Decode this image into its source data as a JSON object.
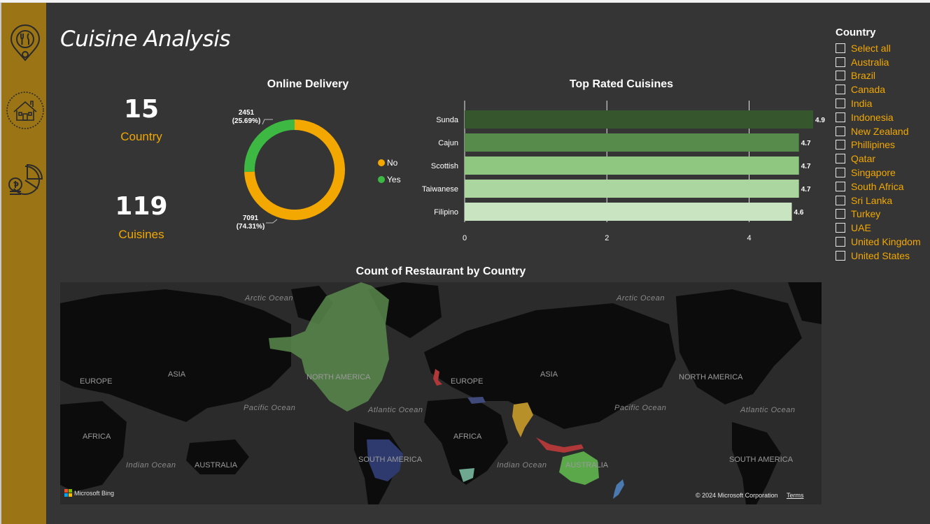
{
  "page": {
    "title": "Cuisine Analysis"
  },
  "sidebar": {
    "icons": [
      {
        "name": "restaurant-location-icon"
      },
      {
        "name": "home-icon"
      },
      {
        "name": "finance-pie-icon"
      }
    ]
  },
  "kpis": [
    {
      "value": "15",
      "label": "Country"
    },
    {
      "value": "119",
      "label": "Cuisines"
    }
  ],
  "online_delivery": {
    "title": "Online Delivery",
    "yes_label": "2451",
    "yes_pct": "(25.69%)",
    "no_label": "7091",
    "no_pct": "(74.31%)",
    "legend": [
      "No",
      "Yes"
    ],
    "colors": {
      "No": "#f2a800",
      "Yes": "#3cb843"
    }
  },
  "top_rated": {
    "title": "Top Rated Cuisines"
  },
  "chart_data": [
    {
      "type": "pie",
      "title": "Online Delivery",
      "categories": [
        "No",
        "Yes"
      ],
      "values": [
        7091,
        2451
      ],
      "percent": [
        74.31,
        25.69
      ],
      "legend": "right",
      "colors": [
        "#f2a800",
        "#3cb843"
      ]
    },
    {
      "type": "bar",
      "orientation": "horizontal",
      "title": "Top Rated Cuisines",
      "categories": [
        "Sunda",
        "Cajun",
        "Scottish",
        "Taiwanese",
        "Filipino"
      ],
      "values": [
        4.9,
        4.7,
        4.7,
        4.7,
        4.6
      ],
      "data_labels": [
        "4.9",
        "4.7",
        "4.7",
        "4.7",
        "4.6"
      ],
      "xlim": [
        0,
        4.9
      ],
      "xticks": [
        0,
        2,
        4
      ],
      "grid": true,
      "colors": [
        "#36572e",
        "#568b4c",
        "#8fc780",
        "#abd6a0",
        "#c8e4c0"
      ]
    }
  ],
  "slicer": {
    "title": "Country",
    "items": [
      "Select all",
      "Australia",
      "Brazil",
      "Canada",
      "India",
      "Indonesia",
      "New Zealand",
      "Phillipines",
      "Qatar",
      "Singapore",
      "South Africa",
      "Sri Lanka",
      "Turkey",
      "UAE",
      "United Kingdom",
      "United States"
    ]
  },
  "map": {
    "title": "Count of Restaurant by Country",
    "labels": {
      "arctic_ocean_left": "Arctic Ocean",
      "arctic_ocean_right": "Arctic Ocean",
      "europe_left": "EUROPE",
      "asia_left": "ASIA",
      "north_america": "NORTH AMERICA",
      "europe_mid": "EUROPE",
      "asia_mid": "ASIA",
      "north_america_right": "NORTH AMERICA",
      "pacific_ocean_left": "Pacific Ocean",
      "atlantic_ocean_mid": "Atlantic Ocean",
      "pacific_ocean_right": "Pacific Ocean",
      "atlantic_ocean_right": "Atlantic Ocean",
      "africa_left": "AFRICA",
      "africa_mid": "AFRICA",
      "indian_ocean_left": "Indian Ocean",
      "australia_left": "AUSTRALIA",
      "south_america": "SOUTH AMERICA",
      "indian_ocean_mid": "Indian Ocean",
      "australia_mid": "AUSTRALIA",
      "south_america_right": "SOUTH AMERICA"
    },
    "bing": "Microsoft Bing",
    "copyright": "© 2024 Microsoft Corporation",
    "terms": "Terms"
  }
}
